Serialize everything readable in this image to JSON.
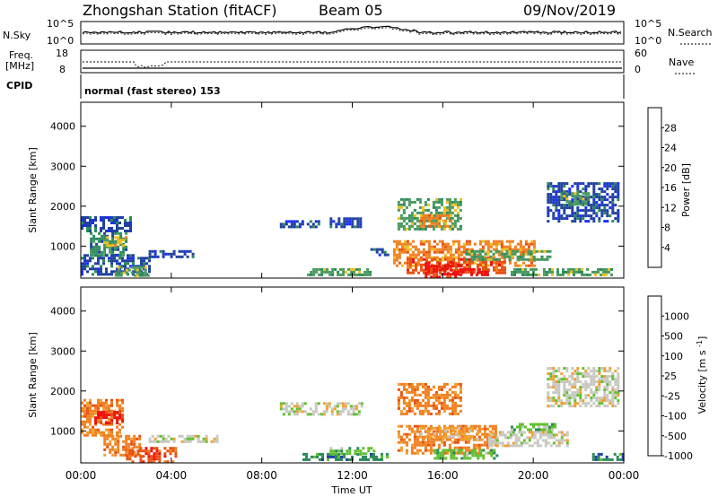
{
  "header": {
    "title": "Zhongshan Station (fitACF)",
    "beam": "Beam 05",
    "date": "09/Nov/2019"
  },
  "panel_nsky": {
    "left_label": "N.Sky",
    "left_ticks": [
      "10^5",
      "10^0"
    ],
    "right_ticks": [
      "10^5",
      "10^0"
    ],
    "right_label": "N.Search"
  },
  "panel_freq": {
    "left_label_1": "Freq.",
    "left_label_2": "[MHz]",
    "left_ticks": [
      "18",
      "8"
    ],
    "right_ticks": [
      "60",
      "0"
    ],
    "right_label": "Nave"
  },
  "cpid": {
    "label": "CPID",
    "mode": "normal (fast stereo) 153"
  },
  "x_axis": {
    "ticks": [
      "00:00",
      "04:00",
      "08:00",
      "12:00",
      "16:00",
      "20:00",
      "00:00"
    ],
    "label": "Time UT"
  },
  "colors": {
    "power": [
      "#1a2bff",
      "#2040a0",
      "#2a8a5a",
      "#4a9a60",
      "#f0c020",
      "#f08020",
      "#e85010",
      "#ee1010"
    ],
    "velocity": [
      "#ee1010",
      "#e85010",
      "#f08020",
      "#f0a030",
      "#c8c8c0",
      "#60c030",
      "#2a8a5a",
      "#2040a0"
    ]
  },
  "chart_data": [
    {
      "type": "heatmap",
      "name": "power",
      "ylabel": "Slant Range [km]",
      "xlabel": "Time UT",
      "yticks": [
        "1000",
        "2000",
        "3000",
        "4000"
      ],
      "ylim": [
        200,
        4600
      ],
      "xlim": [
        0,
        24
      ],
      "colorbar_label": "Power [dB]",
      "colorbar_ticks": [
        "4",
        "8",
        "12",
        "16",
        "20",
        "24",
        "28"
      ],
      "regions": [
        {
          "t0": 0.0,
          "t1": 2.2,
          "r0": 1350,
          "r1": 1750,
          "level": 1
        },
        {
          "t0": 0.4,
          "t1": 2.0,
          "r0": 800,
          "r1": 1350,
          "level": 2
        },
        {
          "t0": 1.0,
          "t1": 2.0,
          "r0": 1000,
          "r1": 1250,
          "level": 4
        },
        {
          "t0": 0.0,
          "t1": 3.0,
          "r0": 300,
          "r1": 800,
          "level": 1
        },
        {
          "t0": 1.5,
          "t1": 3.0,
          "r0": 250,
          "r1": 500,
          "level": 3
        },
        {
          "t0": 3.0,
          "t1": 5.0,
          "r0": 700,
          "r1": 900,
          "level": 1
        },
        {
          "t0": 8.8,
          "t1": 10.5,
          "r0": 1450,
          "r1": 1650,
          "level": 1
        },
        {
          "t0": 11.0,
          "t1": 12.4,
          "r0": 1500,
          "r1": 1720,
          "level": 1
        },
        {
          "t0": 10.0,
          "t1": 12.8,
          "r0": 250,
          "r1": 450,
          "level": 3
        },
        {
          "t0": 12.8,
          "t1": 13.6,
          "r0": 800,
          "r1": 950,
          "level": 1
        },
        {
          "t0": 14.0,
          "t1": 16.8,
          "r0": 1400,
          "r1": 2200,
          "level": 3
        },
        {
          "t0": 15.0,
          "t1": 16.4,
          "r0": 1500,
          "r1": 1800,
          "level": 5
        },
        {
          "t0": 13.8,
          "t1": 20.0,
          "r0": 500,
          "r1": 1150,
          "level": 5
        },
        {
          "t0": 14.4,
          "t1": 18.8,
          "r0": 300,
          "r1": 700,
          "level": 6
        },
        {
          "t0": 15.2,
          "t1": 16.8,
          "r0": 250,
          "r1": 600,
          "level": 7
        },
        {
          "t0": 16.5,
          "t1": 18.0,
          "r0": 250,
          "r1": 450,
          "level": 7
        },
        {
          "t0": 17.0,
          "t1": 20.8,
          "r0": 650,
          "r1": 900,
          "level": 3
        },
        {
          "t0": 19.0,
          "t1": 23.5,
          "r0": 250,
          "r1": 450,
          "level": 3
        },
        {
          "t0": 20.6,
          "t1": 23.8,
          "r0": 1600,
          "r1": 2600,
          "level": 1
        },
        {
          "t0": 21.2,
          "t1": 22.5,
          "r0": 2050,
          "r1": 2350,
          "level": 3
        }
      ]
    },
    {
      "type": "heatmap",
      "name": "velocity",
      "ylabel": "Slant Range [km]",
      "xlabel": "Time UT",
      "yticks": [
        "1000",
        "2000",
        "3000",
        "4000"
      ],
      "ylim": [
        200,
        4600
      ],
      "xlim": [
        0,
        24
      ],
      "colorbar_label": "Velocity [m s^-1]",
      "colorbar_ticks": [
        "1000",
        "500",
        "100",
        "25",
        "-25",
        "-100",
        "-500",
        "-1000"
      ],
      "regions": [
        {
          "t0": 0.0,
          "t1": 1.8,
          "r0": 900,
          "r1": 1800,
          "level": 2
        },
        {
          "t0": 0.6,
          "t1": 1.8,
          "r0": 1200,
          "r1": 1500,
          "level": 0
        },
        {
          "t0": 1.0,
          "t1": 2.6,
          "r0": 400,
          "r1": 900,
          "level": 2
        },
        {
          "t0": 2.0,
          "t1": 4.2,
          "r0": 250,
          "r1": 600,
          "level": 1
        },
        {
          "t0": 3.0,
          "t1": 6.0,
          "r0": 750,
          "r1": 900,
          "level": 4
        },
        {
          "t0": 8.8,
          "t1": 12.4,
          "r0": 1450,
          "r1": 1720,
          "level": 4
        },
        {
          "t0": 9.8,
          "t1": 13.5,
          "r0": 250,
          "r1": 450,
          "level": 6
        },
        {
          "t0": 11.0,
          "t1": 13.0,
          "r0": 400,
          "r1": 600,
          "level": 5
        },
        {
          "t0": 14.0,
          "t1": 16.8,
          "r0": 1400,
          "r1": 2200,
          "level": 2
        },
        {
          "t0": 14.0,
          "t1": 18.4,
          "r0": 450,
          "r1": 1150,
          "level": 2
        },
        {
          "t0": 15.0,
          "t1": 17.6,
          "r0": 800,
          "r1": 1100,
          "level": 3
        },
        {
          "t0": 15.6,
          "t1": 18.4,
          "r0": 300,
          "r1": 550,
          "level": 5
        },
        {
          "t0": 18.0,
          "t1": 21.5,
          "r0": 650,
          "r1": 1000,
          "level": 4
        },
        {
          "t0": 19.0,
          "t1": 21.0,
          "r0": 1000,
          "r1": 1200,
          "level": 5
        },
        {
          "t0": 20.6,
          "t1": 23.8,
          "r0": 1600,
          "r1": 2600,
          "level": 4
        },
        {
          "t0": 22.6,
          "t1": 24.0,
          "r0": 250,
          "r1": 450,
          "level": 6
        }
      ]
    }
  ]
}
